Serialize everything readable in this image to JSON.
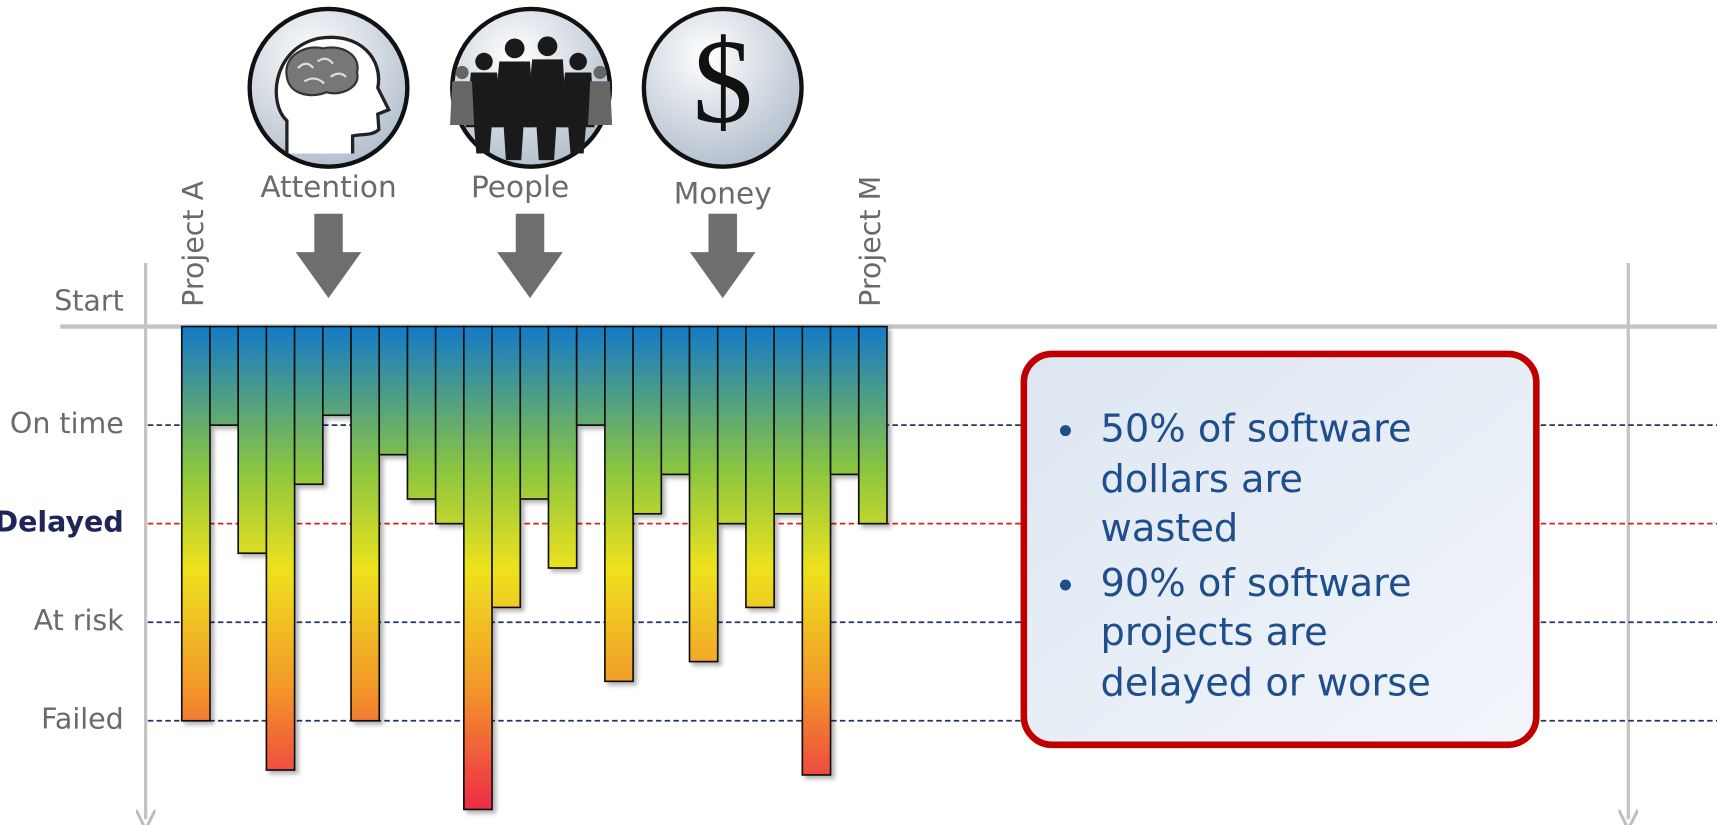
{
  "chart_data": {
    "type": "bar",
    "categories": [
      "Project A",
      null,
      null,
      null,
      null,
      null,
      null,
      null,
      null,
      null,
      null,
      null,
      null,
      null,
      null,
      null,
      null,
      null,
      null,
      null,
      null,
      null,
      null,
      null,
      "Project M"
    ],
    "values": [
      4,
      1,
      2.3,
      4.5,
      1.6,
      0.9,
      4,
      1.3,
      1.75,
      2,
      4.9,
      2.85,
      1.75,
      2.45,
      1,
      3.6,
      1.9,
      1.5,
      3.4,
      2,
      2.85,
      1.9,
      4.55,
      1.5,
      2
    ],
    "ylim": [
      0,
      5
    ],
    "yticks": [
      {
        "value": 0,
        "label": "Start"
      },
      {
        "value": 1,
        "label": "On time"
      },
      {
        "value": 2,
        "label": "Delayed"
      },
      {
        "value": 3,
        "label": "At risk"
      },
      {
        "value": 4,
        "label": "Failed"
      }
    ],
    "grid": true,
    "resources": [
      {
        "label": "Attention"
      },
      {
        "label": "People"
      },
      {
        "label": "Money",
        "symbol": "$"
      }
    ],
    "callout": [
      "50% of software dollars are wasted",
      "90% of software projects are delayed or worse"
    ]
  }
}
